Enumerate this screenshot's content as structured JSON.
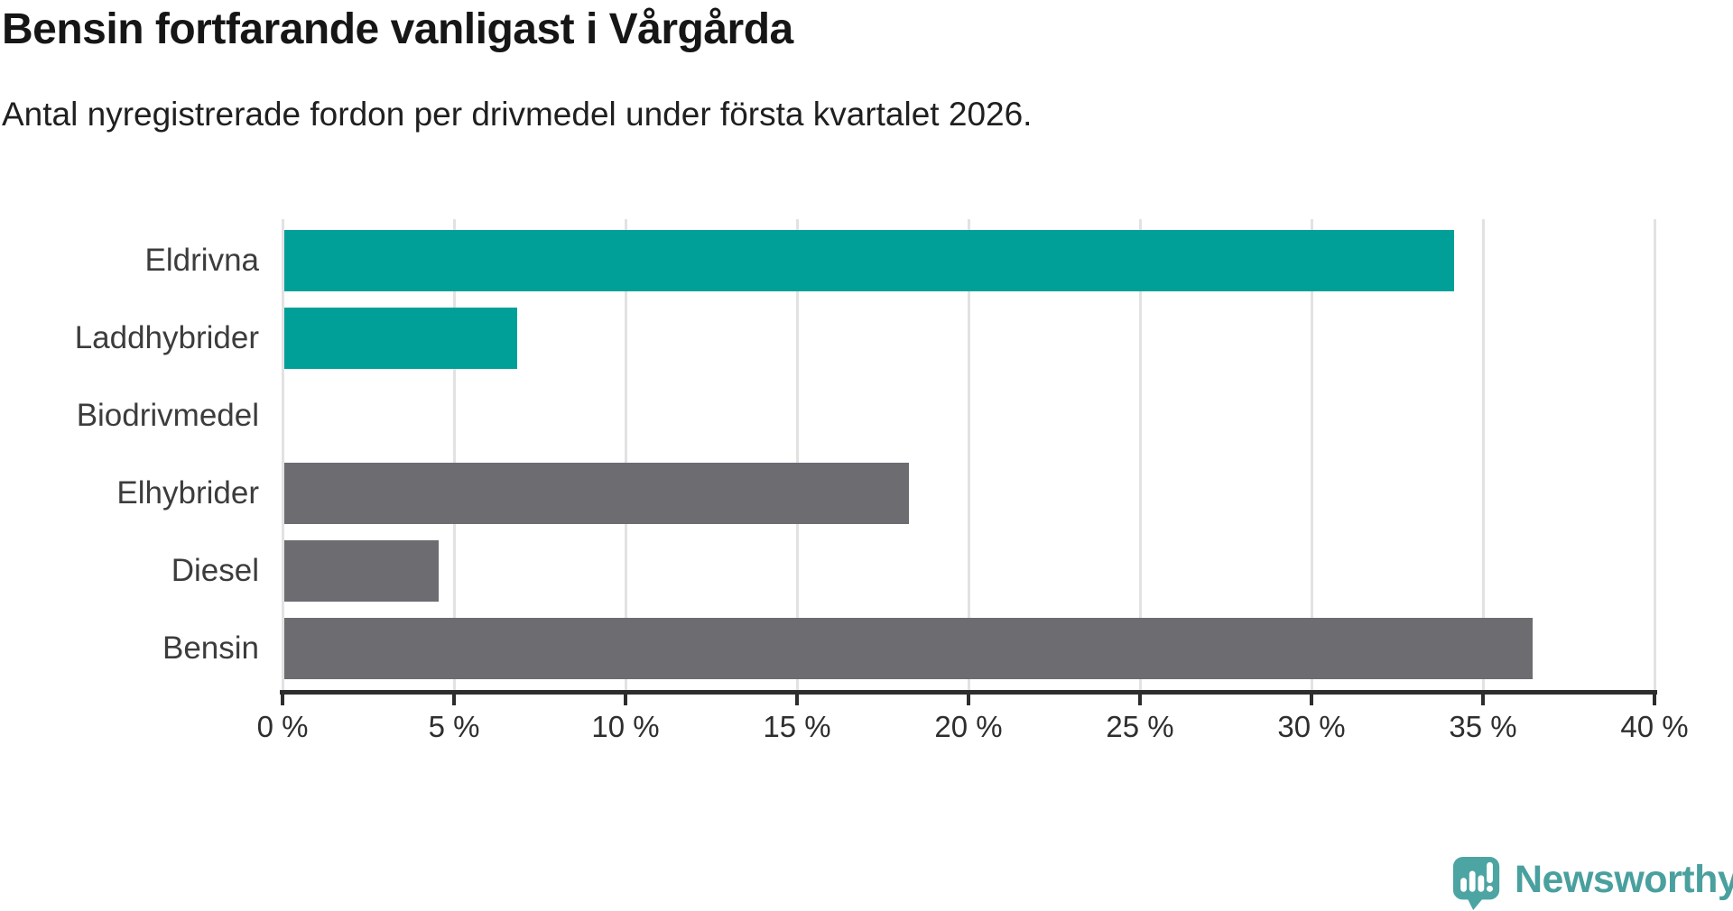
{
  "title": "Bensin fortfarande vanligast i Vårgårda",
  "subtitle": "Antal nyregistrerade fordon per drivmedel under första kvartalet 2026.",
  "chart_data": {
    "type": "bar",
    "orientation": "horizontal",
    "title": "Bensin fortfarande vanligast i Vårgårda",
    "subtitle": "Antal nyregistrerade fordon per drivmedel under första kvartalet 2026.",
    "categories": [
      "Eldrivna",
      "Laddhybrider",
      "Biodrivmedel",
      "Elhybrider",
      "Diesel",
      "Bensin"
    ],
    "values": [
      34.1,
      6.8,
      0,
      18.2,
      4.5,
      36.4
    ],
    "unit": "%",
    "bar_colors": [
      "#00A098",
      "#00A098",
      "#00A098",
      "#6C6C71",
      "#6C6C71",
      "#6C6C71"
    ],
    "accent_color": "#00A098",
    "neutral_color": "#6C6C71",
    "xlim": [
      0,
      40
    ],
    "xticks": [
      0,
      5,
      10,
      15,
      20,
      25,
      30,
      35,
      40
    ],
    "xtick_suffix": " %",
    "grid": true,
    "legend_position": "none",
    "ylabel": "",
    "xlabel": ""
  },
  "branding": {
    "wordmark": "Newsworthy",
    "badge_color": "#4DA5A3",
    "wordmark_color": "#49A09E"
  }
}
